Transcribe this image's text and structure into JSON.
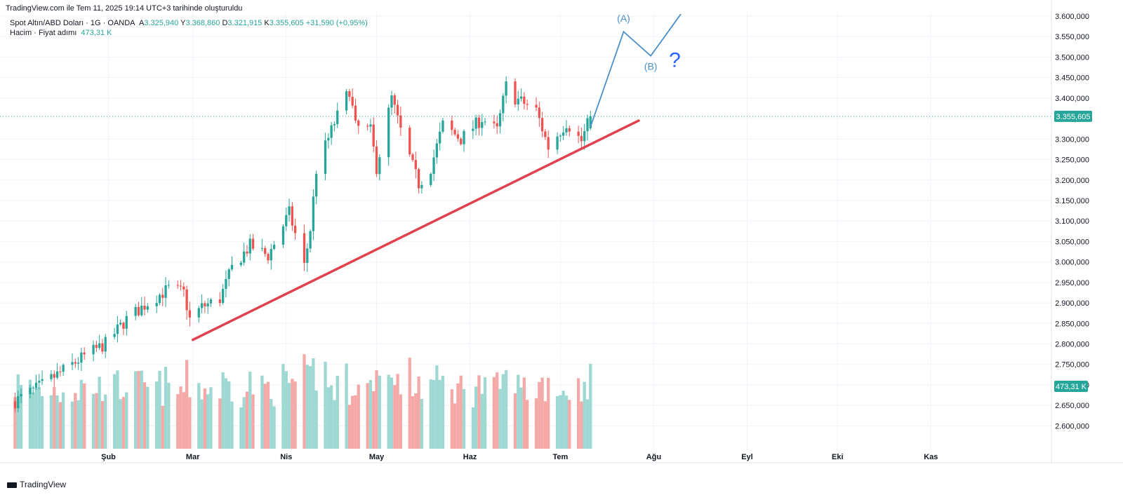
{
  "header": {
    "credit": "TradingView.com ile Tem 11, 2025 19:14 UTC+3 tarihinde oluşturuldu"
  },
  "legend": {
    "symbol": "Spot Altın/ABD Doları · 1G · OANDA",
    "open_label": "A",
    "open": "3.325,940",
    "high_label": "Y",
    "high": "3.368,860",
    "low_label": "D",
    "low": "3.321,915",
    "close_label": "K",
    "close": "3.355,605",
    "change": "+31,590 (+0,95%)",
    "volume_label": "Hacim · Fiyat adımı",
    "volume": "473,31 K"
  },
  "footer": {
    "brand": "TradingView"
  },
  "colors": {
    "up": "#26a69a",
    "down": "#ef5350",
    "up_vol": "#9ed8d2",
    "down_vol": "#f5a9a7",
    "trendline": "#e0414d",
    "projection": "#4a90c8",
    "question": "#2962ff",
    "grid": "#f0f3fa"
  },
  "chart_data": {
    "type": "candlestick",
    "symbol": "Spot Altın/ABD Doları",
    "interval": "1G",
    "ylim": [
      2575,
      3600
    ],
    "y_ticks": [
      "3.600,000",
      "3.550,000",
      "3.500,000",
      "3.450,000",
      "3.400,000",
      "3.350,000",
      "3.300,000",
      "3.250,000",
      "3.200,000",
      "3.150,000",
      "3.100,000",
      "3.050,000",
      "3.000,000",
      "2.950,000",
      "2.900,000",
      "2.850,000",
      "2.800,000",
      "2.750,000",
      "2.700,000",
      "2.650,000",
      "2.600,000"
    ],
    "y_tick_values": [
      3600,
      3550,
      3500,
      3450,
      3400,
      3350,
      3300,
      3250,
      3200,
      3150,
      3100,
      3050,
      3000,
      2950,
      2900,
      2850,
      2800,
      2750,
      2700,
      2650,
      2600
    ],
    "x_ticks": [
      "Şub",
      "Mar",
      "Nis",
      "May",
      "Haz",
      "Tem",
      "Ağu",
      "Eyl",
      "Eki",
      "Kas"
    ],
    "x_tick_dates": [
      "2025-02-01",
      "2025-03-01",
      "2025-04-01",
      "2025-05-01",
      "2025-06-01",
      "2025-07-01",
      "2025-08-01",
      "2025-09-01",
      "2025-10-01",
      "2025-11-01"
    ],
    "current_price": 3355.605,
    "current_price_label": "3.355,605",
    "current_volume_label": "473,31 K",
    "anchors": [
      [
        "2025-01-01",
        2660
      ],
      [
        "2025-01-10",
        2700
      ],
      [
        "2025-01-17",
        2735
      ],
      [
        "2025-01-24",
        2770
      ],
      [
        "2025-01-31",
        2800
      ],
      [
        "2025-02-07",
        2860
      ],
      [
        "2025-02-14",
        2900
      ],
      [
        "2025-02-21",
        2935
      ],
      [
        "2025-02-26",
        2925
      ],
      [
        "2025-02-28",
        2860
      ],
      [
        "2025-03-04",
        2890
      ],
      [
        "2025-03-10",
        2910
      ],
      [
        "2025-03-14",
        2985
      ],
      [
        "2025-03-20",
        3040
      ],
      [
        "2025-03-26",
        3015
      ],
      [
        "2025-04-02",
        3120
      ],
      [
        "2025-04-07",
        2990
      ],
      [
        "2025-04-09",
        3080
      ],
      [
        "2025-04-11",
        3225
      ],
      [
        "2025-04-17",
        3340
      ],
      [
        "2025-04-22",
        3420
      ],
      [
        "2025-04-24",
        3330
      ],
      [
        "2025-04-29",
        3320
      ],
      [
        "2025-05-01",
        3230
      ],
      [
        "2025-05-06",
        3400
      ],
      [
        "2025-05-09",
        3320
      ],
      [
        "2025-05-15",
        3190
      ],
      [
        "2025-05-19",
        3230
      ],
      [
        "2025-05-23",
        3335
      ],
      [
        "2025-05-29",
        3300
      ],
      [
        "2025-06-05",
        3350
      ],
      [
        "2025-06-10",
        3320
      ],
      [
        "2025-06-13",
        3430
      ],
      [
        "2025-06-16",
        3400
      ],
      [
        "2025-06-23",
        3370
      ],
      [
        "2025-06-27",
        3280
      ],
      [
        "2025-07-03",
        3340
      ],
      [
        "2025-07-08",
        3295
      ],
      [
        "2025-07-11",
        3355
      ]
    ],
    "last_candle": {
      "date": "2025-07-11",
      "open": 3325.94,
      "high": 3368.86,
      "low": 3321.915,
      "close": 3355.605,
      "volume": 473310
    },
    "volume_range": [
      0,
      1000000
    ],
    "trendline": {
      "from": {
        "date": "2025-03-01",
        "price": 2810
      },
      "to": {
        "date": "2025-07-27",
        "price": 3345
      }
    },
    "projection": {
      "path": [
        {
          "date": "2025-07-11",
          "price": 3330
        },
        {
          "date": "2025-07-22",
          "price": 3562
        },
        {
          "date": "2025-07-31",
          "price": 3503
        },
        {
          "date": "2025-08-10",
          "price": 3605
        }
      ],
      "labels": [
        {
          "text": "(A)",
          "date": "2025-07-22",
          "price": 3562
        },
        {
          "text": "(B)",
          "date": "2025-07-31",
          "price": 3503
        },
        {
          "text": "?",
          "date": "2025-08-08",
          "price": 3500
        }
      ]
    }
  }
}
